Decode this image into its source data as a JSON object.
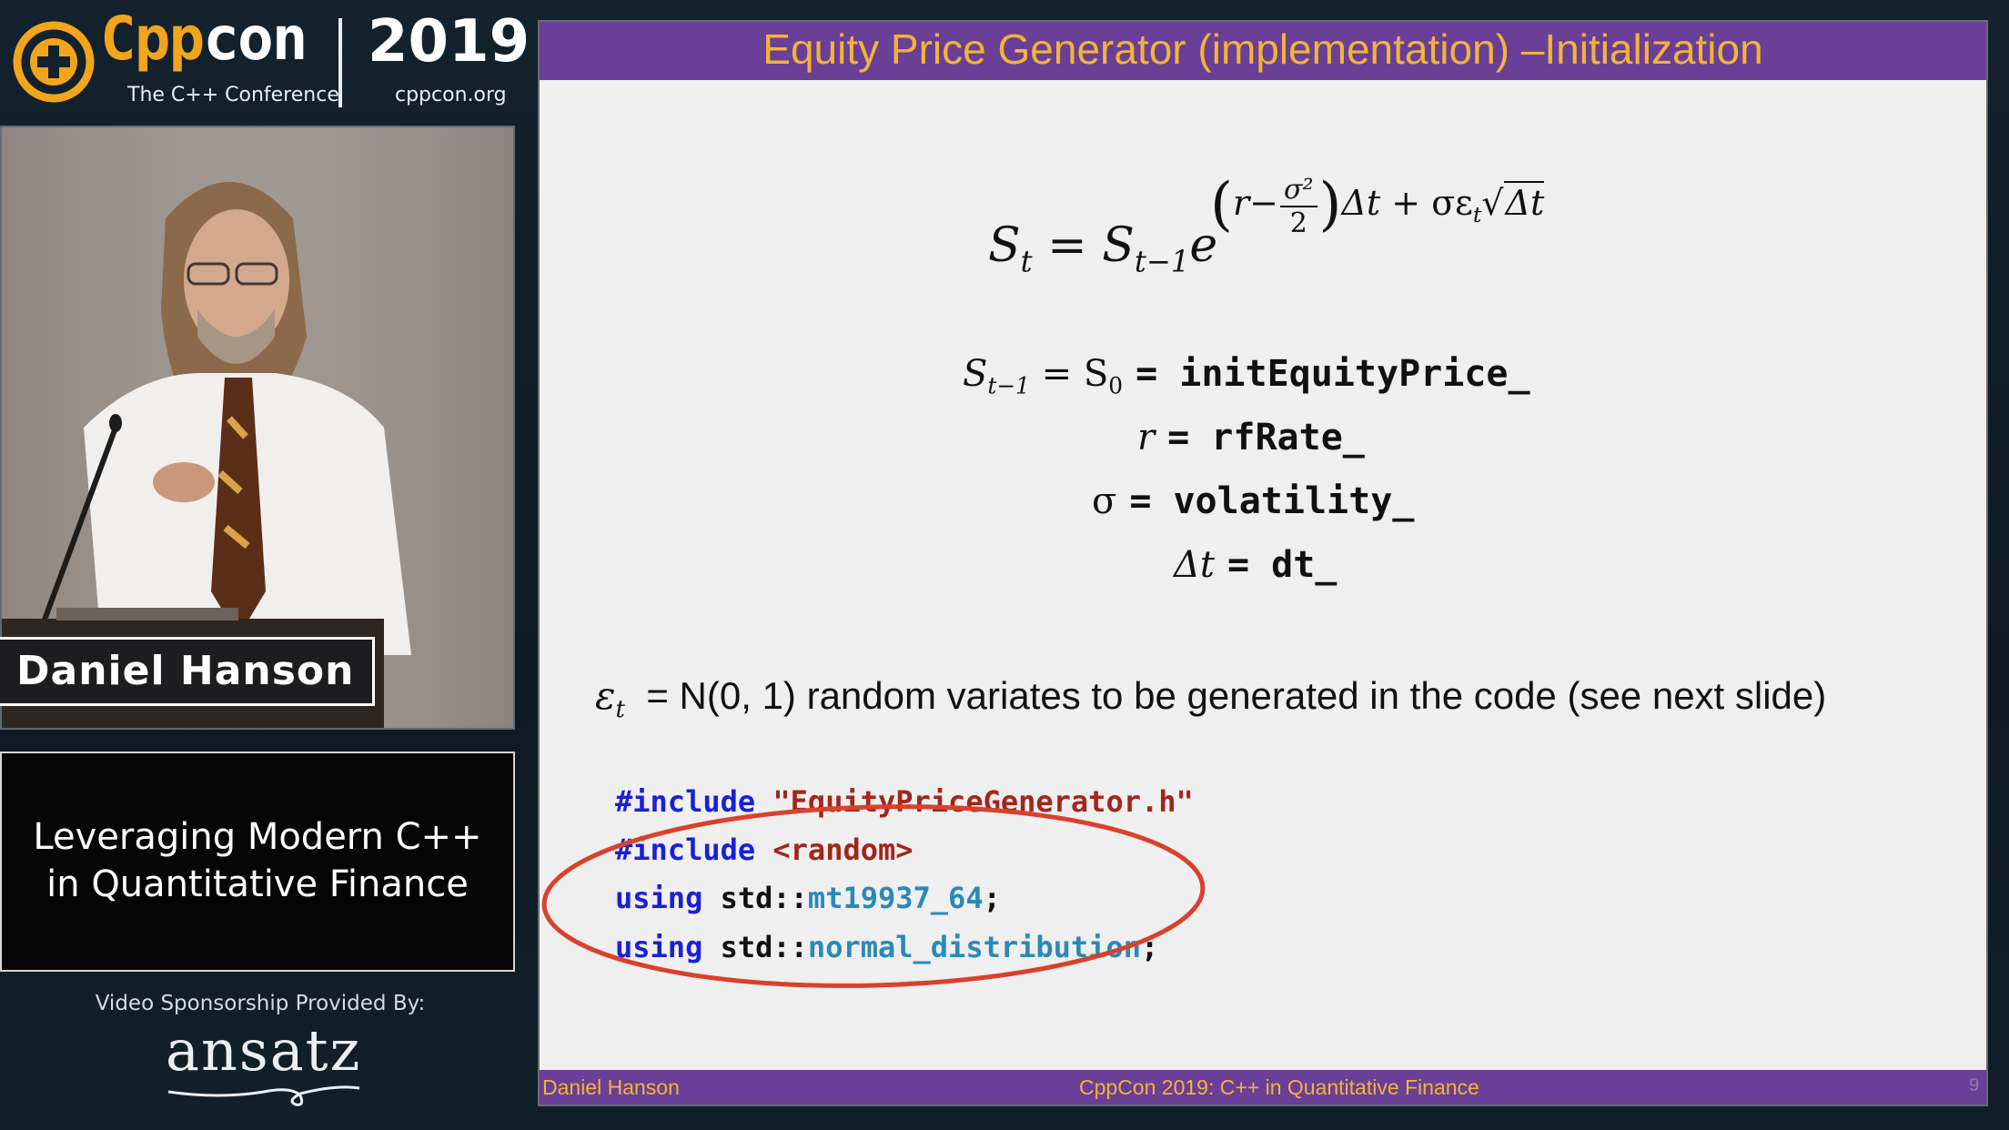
{
  "branding": {
    "logo_cpp": "Cpp",
    "logo_con": "con",
    "logo_subtitle": "The C++ Conference",
    "year": "2019",
    "site": "cppcon.org"
  },
  "speaker": {
    "name": "Daniel Hanson"
  },
  "talk": {
    "title_line1": "Leveraging Modern C++",
    "title_line2": "in Quantitative Finance"
  },
  "sponsor": {
    "label": "Video Sponsorship Provided By:",
    "name": "ansatz"
  },
  "slide": {
    "title": "Equity Price Generator (implementation) –Initialization",
    "equation": {
      "lhs": "S",
      "lhs_sub": "t",
      "eq": "=",
      "rhs": "S",
      "rhs_sub": "t−1",
      "e": "e",
      "exp_r": "r",
      "exp_minus": "−",
      "exp_num": "σ²",
      "exp_den": "2",
      "exp_dt": "Δt",
      "exp_plus": "+ σε",
      "exp_eps_sub": "t",
      "exp_sqrt": "Δt"
    },
    "definitions": [
      {
        "math": "S",
        "math_sub": "t−1",
        "math2": "= S",
        "math2_sub": "0",
        "code": "= initEquityPrice_"
      },
      {
        "math": "r",
        "code": "= rfRate_"
      },
      {
        "math": "σ",
        "code": "= volatility_"
      },
      {
        "math": "Δt",
        "code": "= dt_"
      }
    ],
    "epsilon": {
      "sym": "ε",
      "sub": "t",
      "text": "=  N(0, 1) random variates to be generated in the code (see next slide)"
    },
    "code": {
      "line1_kw": "#include",
      "line1_str": "\"EquityPriceGenerator.h\"",
      "line2_kw": "#include",
      "line2_str": "<random>",
      "line3_kw": "using",
      "line3_ns": " std::",
      "line3_type": "mt19937_64",
      "line3_end": ";",
      "line4_kw": "using",
      "line4_ns": " std::",
      "line4_type": "normal_distribution",
      "line4_end": ";"
    },
    "footer": {
      "author": "Daniel Hanson",
      "conference": "CppCon 2019:  C++ in Quantitative Finance",
      "page": "9"
    }
  },
  "colors": {
    "slide_bar": "#6a3f97",
    "slide_title": "#f3b338",
    "highlight": "#d9412c",
    "cpp_orange": "#f2a41a"
  }
}
